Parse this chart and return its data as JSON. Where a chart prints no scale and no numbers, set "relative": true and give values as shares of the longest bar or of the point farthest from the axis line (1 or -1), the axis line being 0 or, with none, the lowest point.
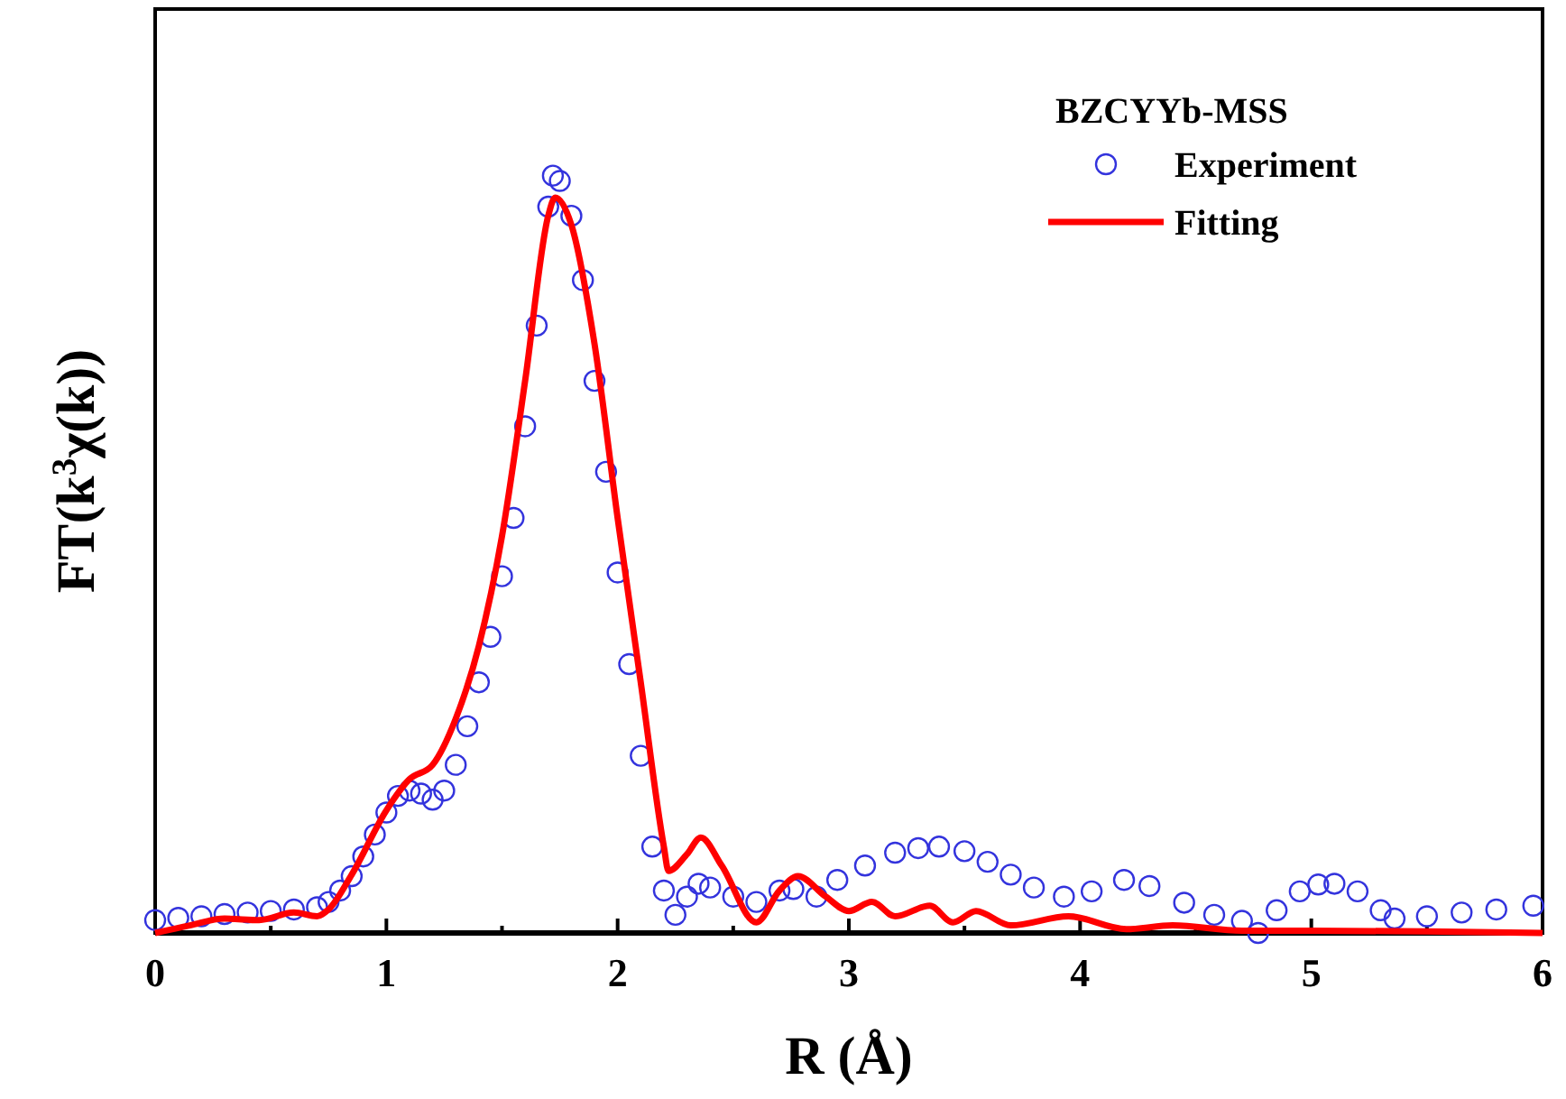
{
  "chart_data": {
    "type": "scatter",
    "xlabel": "R (Å)",
    "ylabel": "FT(k$^{3}$χ(k))",
    "legend_title": "BZCYYb-MSS",
    "legend": "top right",
    "relative": true,
    "grid": false,
    "xlim": [
      0,
      6
    ],
    "xticks": [
      0,
      1,
      2,
      3,
      4,
      5,
      6
    ],
    "series": [
      {
        "name": "Experiment",
        "marker": "circle",
        "color": "#3333dd",
        "x": [
          0,
          0.1,
          0.2,
          0.3,
          0.4,
          0.5,
          0.6,
          0.7,
          0.75,
          0.8,
          0.85,
          0.9,
          0.95,
          1.0,
          1.05,
          1.1,
          1.15,
          1.2,
          1.25,
          1.3,
          1.35,
          1.4,
          1.45,
          1.5,
          1.55,
          1.6,
          1.65,
          1.7,
          1.72,
          1.75,
          1.8,
          1.85,
          1.9,
          1.95,
          2.0,
          2.05,
          2.1,
          2.15,
          2.2,
          2.25,
          2.3,
          2.35,
          2.4,
          2.5,
          2.6,
          2.7,
          2.76,
          2.86,
          2.95,
          3.07,
          3.2,
          3.3,
          3.39,
          3.5,
          3.6,
          3.7,
          3.8,
          3.93,
          4.05,
          4.19,
          4.3,
          4.45,
          4.58,
          4.7,
          4.77,
          4.85,
          4.95,
          5.03,
          5.1,
          5.2,
          5.3,
          5.36,
          5.5,
          5.65,
          5.8,
          5.96
        ],
        "values": [
          0.017,
          0.02,
          0.022,
          0.025,
          0.027,
          0.029,
          0.031,
          0.034,
          0.041,
          0.056,
          0.075,
          0.101,
          0.13,
          0.159,
          0.181,
          0.188,
          0.184,
          0.176,
          0.188,
          0.222,
          0.273,
          0.331,
          0.391,
          0.471,
          0.548,
          0.669,
          0.802,
          0.959,
          1,
          0.993,
          0.947,
          0.862,
          0.729,
          0.609,
          0.476,
          0.355,
          0.234,
          0.114,
          0.056,
          0.024,
          0.048,
          0.065,
          0.06,
          0.048,
          0.041,
          0.056,
          0.058,
          0.048,
          0.07,
          0.089,
          0.106,
          0.112,
          0.114,
          0.108,
          0.094,
          0.077,
          0.06,
          0.048,
          0.055,
          0.07,
          0.062,
          0.04,
          0.024,
          0.016,
          0,
          0.03,
          0.055,
          0.064,
          0.065,
          0.055,
          0.03,
          0.019,
          0.022,
          0.027,
          0.031,
          0.036
        ]
      },
      {
        "name": "Fitting",
        "type": "line",
        "line_style": "solid",
        "color": "#ff0000",
        "x": [
          0,
          0.15,
          0.3,
          0.45,
          0.6,
          0.7,
          0.75,
          0.85,
          1.0,
          1.1,
          1.2,
          1.3,
          1.4,
          1.5,
          1.6,
          1.7,
          1.73,
          1.8,
          1.9,
          2.0,
          2.1,
          2.2,
          2.22,
          2.3,
          2.36,
          2.45,
          2.6,
          2.7,
          2.78,
          2.9,
          3.0,
          3.1,
          3.2,
          3.35,
          3.45,
          3.55,
          3.7,
          3.95,
          4.2,
          4.4,
          4.7,
          5.0,
          5.5,
          6
        ],
        "values": [
          0,
          0.01,
          0.019,
          0.017,
          0.027,
          0.022,
          0.031,
          0.077,
          0.162,
          0.203,
          0.222,
          0.283,
          0.379,
          0.524,
          0.729,
          0.947,
          0.971,
          0.935,
          0.778,
          0.548,
          0.331,
          0.114,
          0.082,
          0.104,
          0.126,
          0.089,
          0.014,
          0.056,
          0.075,
          0.048,
          0.029,
          0.041,
          0.022,
          0.036,
          0.014,
          0.029,
          0.01,
          0.022,
          0.005,
          0.01,
          0.003,
          0.003,
          0.002,
          0
        ]
      }
    ]
  }
}
